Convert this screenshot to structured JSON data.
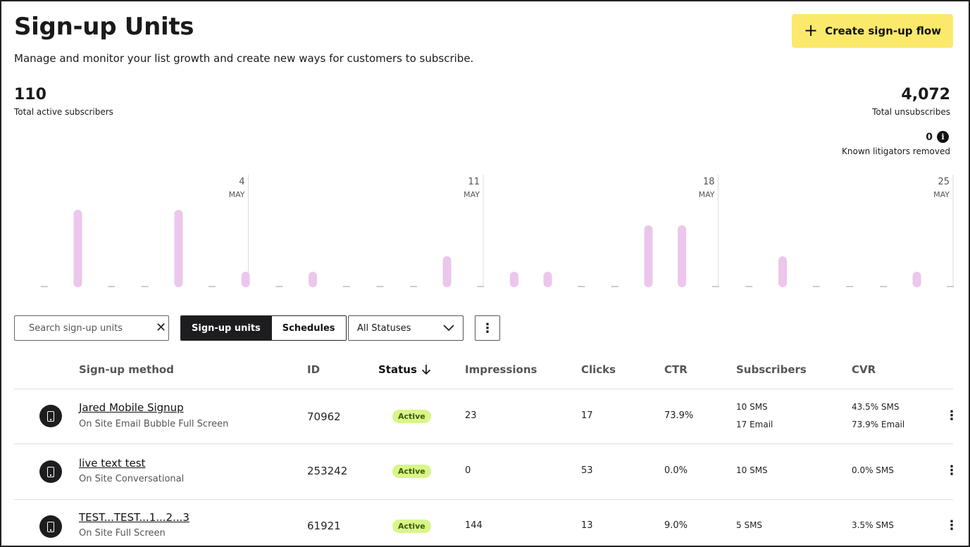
{
  "header": {
    "title": "Sign-up Units",
    "subtitle": "Manage and monitor your list growth and create new ways for customers to subscribe.",
    "create_button": "Create sign-up flow"
  },
  "stats": {
    "active_subscribers": "110",
    "active_subscribers_label": "Total active subscribers",
    "unsubscribes": "4,072",
    "unsubscribes_label": "Total unsubscribes",
    "litigators": "0",
    "litigators_label": "Known litigators removed"
  },
  "chart_data": {
    "type": "bar",
    "bar_color": "#ecc6ec",
    "x_ticks": [
      {
        "day": "4",
        "month": "MAY"
      },
      {
        "day": "11",
        "month": "MAY"
      },
      {
        "day": "18",
        "month": "MAY"
      },
      {
        "day": "25",
        "month": "MAY"
      }
    ],
    "values": [
      0,
      5,
      0,
      0,
      5,
      0,
      1,
      0,
      1,
      0,
      0,
      0,
      2,
      0,
      1,
      1,
      0,
      0,
      4,
      4,
      0,
      0,
      2,
      0,
      0,
      0,
      1,
      0
    ]
  },
  "toolbar": {
    "search_placeholder": "Search sign-up units",
    "tab_signup_units": "Sign-up units",
    "tab_schedules": "Schedules",
    "status_filter": "All Statuses"
  },
  "table": {
    "columns": {
      "method": "Sign-up method",
      "id": "ID",
      "status": "Status",
      "impressions": "Impressions",
      "clicks": "Clicks",
      "ctr": "CTR",
      "subscribers": "Subscribers",
      "cvr": "CVR"
    },
    "rows": [
      {
        "name": "Jared Mobile Signup",
        "type": "On Site Email Bubble Full Screen",
        "id": "70962",
        "status": "Active",
        "impressions": "23",
        "clicks": "17",
        "ctr": "73.9%",
        "subscribers_1": "10 SMS",
        "subscribers_2": "17 Email",
        "cvr_1": "43.5% SMS",
        "cvr_2": "73.9% Email"
      },
      {
        "name": "live text test",
        "type": "On Site Conversational",
        "id": "253242",
        "status": "Active",
        "impressions": "0",
        "clicks": "53",
        "ctr": "0.0%",
        "subscribers_1": "10 SMS",
        "cvr_1": "0.0% SMS"
      },
      {
        "name": "TEST...TEST...1...2...3",
        "type": "On Site Full Screen",
        "id": "61921",
        "status": "Active",
        "impressions": "144",
        "clicks": "13",
        "ctr": "9.0%",
        "subscribers_1": "5 SMS",
        "cvr_1": "3.5% SMS"
      }
    ]
  }
}
